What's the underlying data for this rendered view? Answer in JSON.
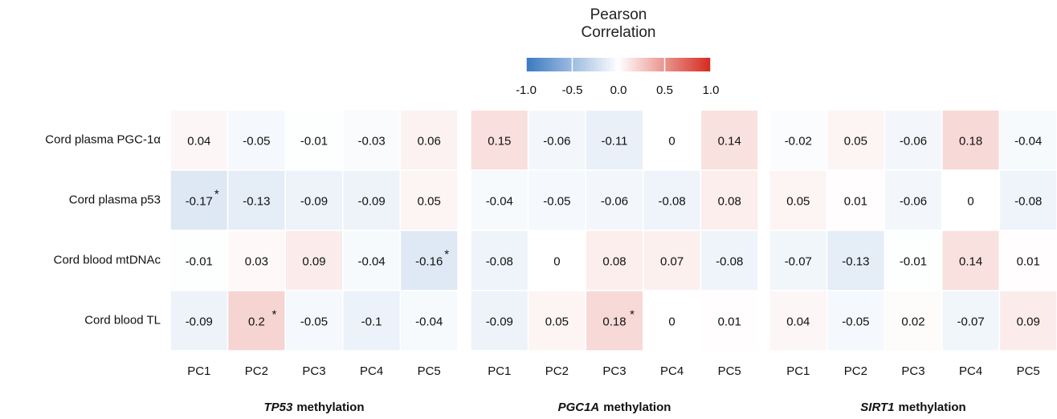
{
  "chart_data": {
    "type": "heatmap",
    "rows": [
      "Cord plasma PGC-1α",
      "Cord plasma p53",
      "Cord blood mtDNAc",
      "Cord blood TL"
    ],
    "columns": [
      "PC1",
      "PC2",
      "PC3",
      "PC4",
      "PC5"
    ],
    "panels": [
      {
        "gene": "TP53",
        "suffix": "methylation",
        "values": [
          [
            0.04,
            -0.05,
            -0.01,
            -0.03,
            0.06
          ],
          [
            -0.17,
            -0.13,
            -0.09,
            -0.09,
            0.05
          ],
          [
            -0.01,
            0.03,
            0.09,
            -0.04,
            -0.16
          ],
          [
            -0.09,
            0.2,
            -0.05,
            -0.1,
            -0.04
          ]
        ],
        "annotations": [
          {
            "row": 1,
            "column": 0,
            "text": "*"
          },
          {
            "row": 2,
            "column": 4,
            "text": "*"
          },
          {
            "row": 3,
            "column": 1,
            "text": "*"
          }
        ]
      },
      {
        "gene": "PGC1A",
        "suffix": "methylation",
        "values": [
          [
            0.15,
            -0.06,
            -0.11,
            0,
            0.14
          ],
          [
            -0.04,
            -0.05,
            -0.06,
            -0.08,
            0.08
          ],
          [
            -0.08,
            0,
            0.08,
            0.07,
            -0.08
          ],
          [
            -0.09,
            0.05,
            0.18,
            0,
            0.01
          ]
        ],
        "annotations": [
          {
            "row": 3,
            "column": 2,
            "text": "*"
          }
        ]
      },
      {
        "gene": "SIRT1",
        "suffix": "methylation",
        "values": [
          [
            -0.02,
            0.05,
            -0.06,
            0.18,
            -0.04
          ],
          [
            0.05,
            0.01,
            -0.06,
            0,
            -0.08
          ],
          [
            -0.07,
            -0.13,
            -0.01,
            0.14,
            0.01
          ],
          [
            0.04,
            -0.05,
            0.02,
            -0.07,
            0.09
          ]
        ],
        "annotations": []
      }
    ],
    "colorbar": {
      "title": "Pearson Correlation",
      "clim": [
        -1,
        1
      ],
      "ticks": [
        {
          "value": -1,
          "label": "-1.0"
        },
        -0.5,
        {
          "value": 0,
          "label": "0.0"
        },
        0.5,
        {
          "value": 1,
          "label": "1.0"
        }
      ],
      "colors": [
        "#3a78c0",
        "#ffffff",
        "#d42a1e"
      ]
    }
  }
}
